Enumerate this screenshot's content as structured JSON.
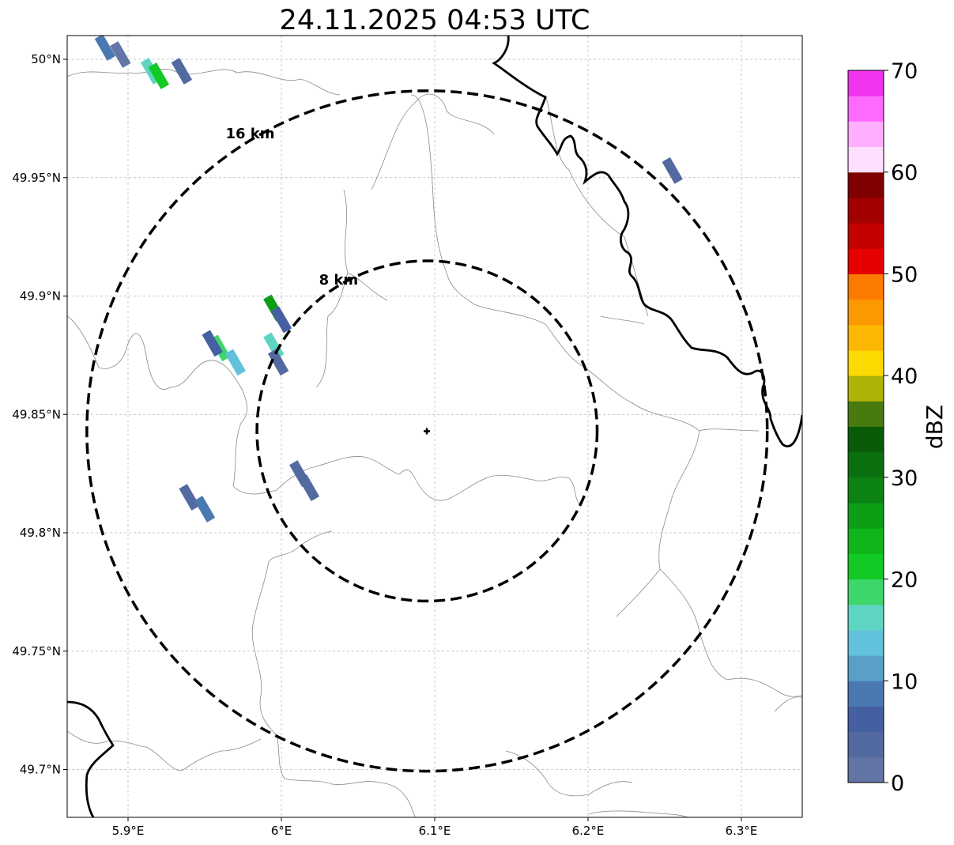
{
  "title": "24.11.2025 04:53 UTC",
  "map": {
    "x_ticks": [
      {
        "value": 5.9,
        "label": "5.9°E"
      },
      {
        "value": 6.0,
        "label": "6°E"
      },
      {
        "value": 6.1,
        "label": "6.1°E"
      },
      {
        "value": 6.2,
        "label": "6.2°E"
      },
      {
        "value": 6.3,
        "label": "6.3°E"
      }
    ],
    "y_ticks": [
      {
        "value": 50.0,
        "label": "50°N"
      },
      {
        "value": 49.95,
        "label": "49.95°N"
      },
      {
        "value": 49.9,
        "label": "49.9°N"
      },
      {
        "value": 49.85,
        "label": "49.85°N"
      },
      {
        "value": 49.8,
        "label": "49.8°N"
      },
      {
        "value": 49.75,
        "label": "49.75°N"
      },
      {
        "value": 49.7,
        "label": "49.7°N"
      }
    ],
    "grid": "on",
    "center": {
      "lon": 6.095,
      "lat": 49.843
    },
    "rings": [
      {
        "radius_km": 8,
        "label": "8 km"
      },
      {
        "radius_km": 16,
        "label": "16 km"
      }
    ]
  },
  "colorbar": {
    "label": "dBZ",
    "ticks": [
      {
        "value": 0,
        "label": "0"
      },
      {
        "value": 10,
        "label": "10"
      },
      {
        "value": 20,
        "label": "20"
      },
      {
        "value": 30,
        "label": "30"
      },
      {
        "value": 40,
        "label": "40"
      },
      {
        "value": 50,
        "label": "50"
      },
      {
        "value": 60,
        "label": "60"
      },
      {
        "value": 70,
        "label": "70"
      }
    ],
    "colors": [
      "#6374a6",
      "#536aa0",
      "#455fa3",
      "#4a79b1",
      "#58a0c7",
      "#62c1db",
      "#5ed5c2",
      "#3dd66b",
      "#13c923",
      "#10b51b",
      "#0e9e16",
      "#0b8212",
      "#0a6f0e",
      "#085c09",
      "#487a10",
      "#adb407",
      "#fcd900",
      "#fcb700",
      "#fc9900",
      "#fc7a00",
      "#e60000",
      "#c40000",
      "#a30000",
      "#7f0000",
      "#ffdfff",
      "#ffafff",
      "#ff6bff",
      "#ef33ef"
    ]
  },
  "echoes": [
    {
      "lon": 5.895,
      "lat": 50.002,
      "dbz": 2
    },
    {
      "lon": 5.915,
      "lat": 49.995,
      "dbz": 16
    },
    {
      "lon": 5.92,
      "lat": 49.993,
      "dbz": 20
    },
    {
      "lon": 5.935,
      "lat": 49.995,
      "dbz": 4
    },
    {
      "lon": 5.885,
      "lat": 50.005,
      "dbz": 8
    },
    {
      "lon": 6.255,
      "lat": 49.953,
      "dbz": 3
    },
    {
      "lon": 5.995,
      "lat": 49.895,
      "dbz": 25
    },
    {
      "lon": 6.0,
      "lat": 49.89,
      "dbz": 5
    },
    {
      "lon": 5.96,
      "lat": 49.878,
      "dbz": 18
    },
    {
      "lon": 5.97,
      "lat": 49.872,
      "dbz": 13
    },
    {
      "lon": 5.955,
      "lat": 49.88,
      "dbz": 6
    },
    {
      "lon": 5.995,
      "lat": 49.879,
      "dbz": 15
    },
    {
      "lon": 5.998,
      "lat": 49.872,
      "dbz": 4
    },
    {
      "lon": 5.94,
      "lat": 49.815,
      "dbz": 3
    },
    {
      "lon": 5.95,
      "lat": 49.81,
      "dbz": 8
    },
    {
      "lon": 6.018,
      "lat": 49.819,
      "dbz": 4
    },
    {
      "lon": 6.012,
      "lat": 49.825,
      "dbz": 3
    }
  ]
}
